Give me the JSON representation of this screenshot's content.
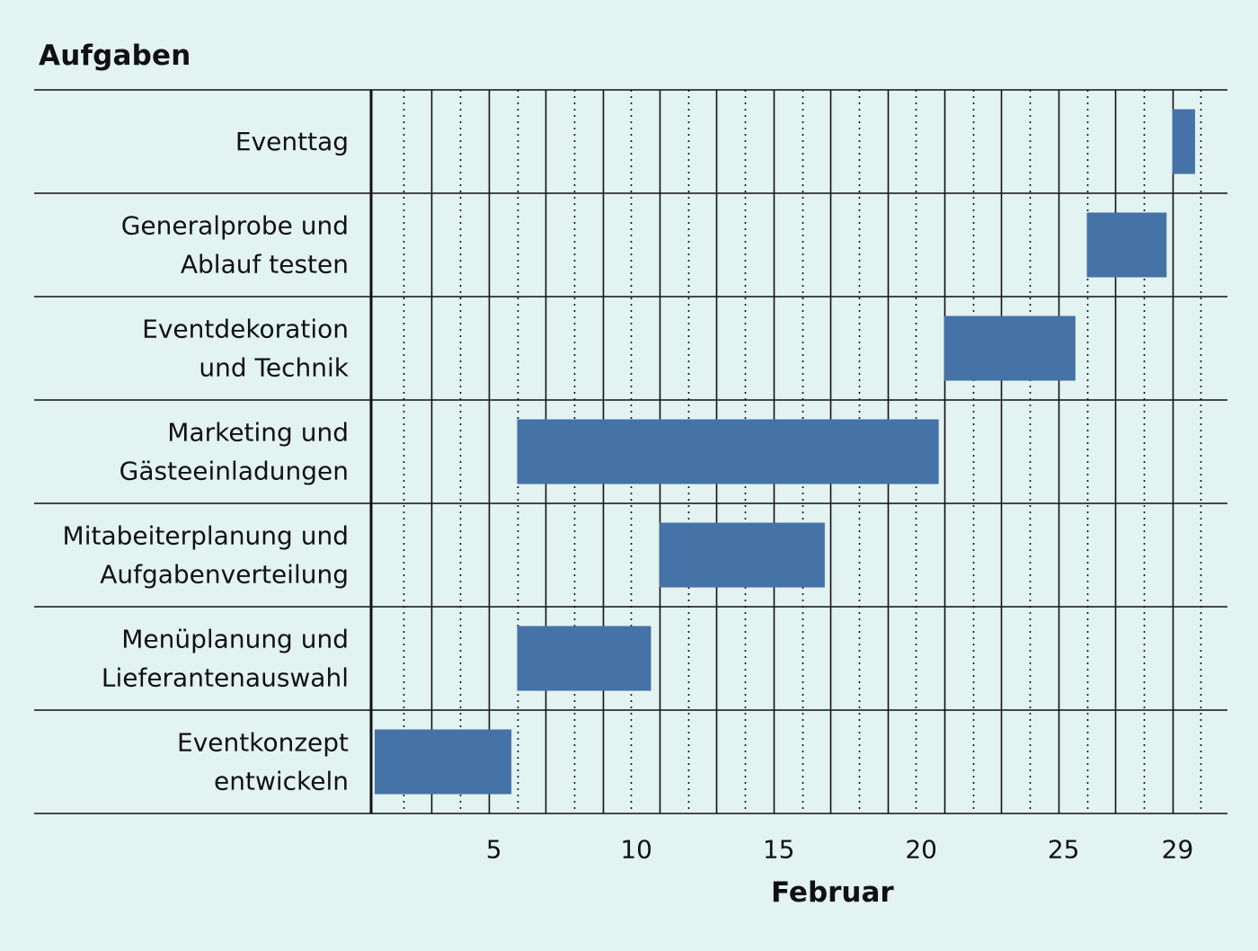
{
  "chart_data": {
    "type": "gantt",
    "ylabel": "Aufgaben",
    "xlabel": "Februar",
    "xlim": [
      1,
      30
    ],
    "x_ticks": [
      5,
      10,
      15,
      20,
      25,
      29
    ],
    "grid": "dotted daily lines, solid lines every 2 days",
    "bar_color": "#4572a7",
    "background_color": "#e3f3f2",
    "tasks": [
      {
        "label_lines": [
          "Eventtag"
        ],
        "start": 29,
        "end": 29.8
      },
      {
        "label_lines": [
          "Generalprobe und",
          "Ablauf testen"
        ],
        "start": 26,
        "end": 28.8
      },
      {
        "label_lines": [
          "Eventdekoration",
          "und Technik"
        ],
        "start": 21,
        "end": 25.6
      },
      {
        "label_lines": [
          "Marketing und",
          "Gästeeinladungen"
        ],
        "start": 6,
        "end": 20.8
      },
      {
        "label_lines": [
          "Mitabeiterplanung und",
          "Aufgabenverteilung"
        ],
        "start": 11,
        "end": 16.8
      },
      {
        "label_lines": [
          "Menüplanung und",
          "Lieferantenauswahl"
        ],
        "start": 6,
        "end": 10.7
      },
      {
        "label_lines": [
          "Eventkonzept",
          "entwickeln"
        ],
        "start": 1,
        "end": 5.8
      }
    ]
  }
}
